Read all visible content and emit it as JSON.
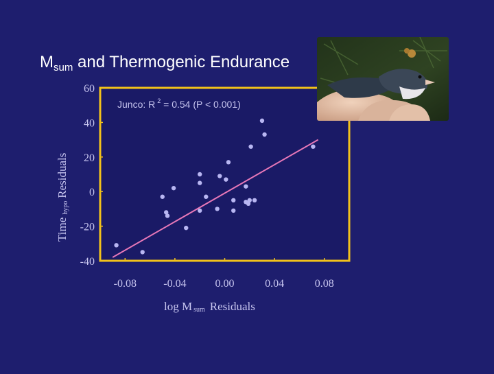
{
  "slide": {
    "title_main": "M",
    "title_sub": "sum",
    "title_rest": " and Thermogenic Endurance",
    "annotation_prefix": "Junco: R",
    "annotation_sup": "2",
    "annotation_rest": " = 0.54 (P < 0.001)",
    "ylabel_main": "Time",
    "ylabel_sub": "hypo",
    "ylabel_rest": "Residuals",
    "xlabel_main": "log M",
    "xlabel_sub": "sum",
    "xlabel_rest": "Residuals"
  },
  "photo": {
    "subject": "junco-bird-in-hand"
  },
  "colors": {
    "background": "#1e1e6e",
    "frame": "#f2c21b",
    "plot_bg": "#1a1a66",
    "points": "#b8b6f2",
    "fit_line": "#e878b8",
    "title_text": "#ffffff",
    "axis_text": "#c8c6f0"
  },
  "chart_data": {
    "type": "scatter",
    "xlim": [
      -0.1,
      0.1
    ],
    "ylim": [
      -40,
      60
    ],
    "xticks": [
      -0.08,
      -0.04,
      0.0,
      0.04,
      0.08
    ],
    "xtick_labels": [
      "-0.08",
      "-0.04",
      "0.00",
      "0.04",
      "0.08"
    ],
    "yticks": [
      60,
      40,
      20,
      0,
      -20,
      -40
    ],
    "ytick_labels": [
      "60",
      "40",
      "20",
      "0",
      "-20",
      "-40"
    ],
    "grid": false,
    "points": [
      {
        "x": -0.087,
        "y": -31
      },
      {
        "x": -0.066,
        "y": -35
      },
      {
        "x": -0.05,
        "y": -3
      },
      {
        "x": -0.047,
        "y": -12
      },
      {
        "x": -0.046,
        "y": -14
      },
      {
        "x": -0.041,
        "y": 2
      },
      {
        "x": -0.031,
        "y": -21
      },
      {
        "x": -0.02,
        "y": 10
      },
      {
        "x": -0.02,
        "y": 5
      },
      {
        "x": -0.02,
        "y": -11
      },
      {
        "x": -0.015,
        "y": -3
      },
      {
        "x": -0.006,
        "y": -10
      },
      {
        "x": -0.004,
        "y": 9
      },
      {
        "x": 0.001,
        "y": 7
      },
      {
        "x": 0.003,
        "y": 17
      },
      {
        "x": 0.007,
        "y": -5
      },
      {
        "x": 0.007,
        "y": -11
      },
      {
        "x": 0.017,
        "y": 3
      },
      {
        "x": 0.017,
        "y": -6
      },
      {
        "x": 0.019,
        "y": -7
      },
      {
        "x": 0.02,
        "y": -5
      },
      {
        "x": 0.021,
        "y": 26
      },
      {
        "x": 0.024,
        "y": -5
      },
      {
        "x": 0.03,
        "y": 41
      },
      {
        "x": 0.032,
        "y": 33
      },
      {
        "x": 0.071,
        "y": 26
      }
    ],
    "fit_line": {
      "x": [
        -0.09,
        0.075
      ],
      "y": [
        -38,
        30
      ]
    }
  }
}
